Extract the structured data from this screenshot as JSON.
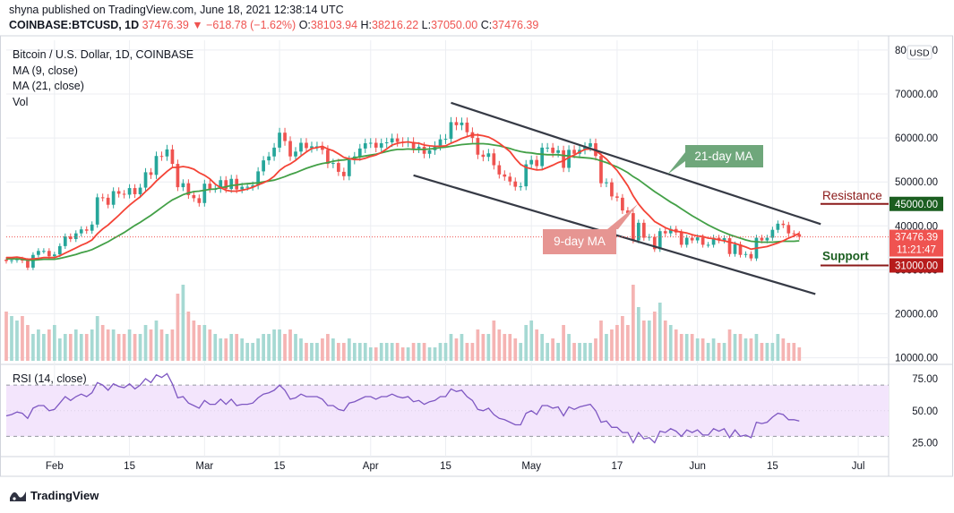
{
  "header": {
    "published": "shyna published on TradingView.com, June 18, 2021 12:38:14 UTC",
    "symbol": "COINBASE:BTCUSD, 1D",
    "last": "37476.39",
    "change": "−618.78 (−1.62%)",
    "o_label": "O:",
    "o": "38103.94",
    "h_label": "H:",
    "h": "38216.22",
    "l_label": "L:",
    "l": "37050.00",
    "c_label": "C:",
    "c": "37476.39"
  },
  "legend": {
    "title": "Bitcoin / U.S. Dollar, 1D, COINBASE",
    "ma9": "MA (9, close)",
    "ma21": "MA (21, close)",
    "vol": "Vol"
  },
  "footer": {
    "brand": "TradingView"
  },
  "colors": {
    "up": "#26a69a",
    "down": "#ef5350",
    "ma9": "#f44336",
    "ma21": "#43a047",
    "rsi": "#7e57c2",
    "rsi_band": "#f3e5fc",
    "grid": "#eceef2",
    "channel": "#363a45"
  },
  "chart_data": [
    {
      "type": "candlestick",
      "currency": "USD",
      "ylim": [
        10000,
        80000
      ],
      "y_ticks": [
        "10000.00",
        "20000.00",
        "30000.00",
        "40000.00",
        "50000.00",
        "60000.00",
        "70000.00",
        "80000.00"
      ],
      "x_labels": [
        "Feb",
        "15",
        "Mar",
        "15",
        "Apr",
        "15",
        "May",
        "17",
        "Jun",
        "15",
        "Jul"
      ],
      "x_label_dates": [
        "2021-02-01",
        "2021-02-15",
        "2021-03-01",
        "2021-03-15",
        "2021-04-01",
        "2021-04-15",
        "2021-05-01",
        "2021-05-17",
        "2021-06-01",
        "2021-06-15",
        "2021-07-01"
      ],
      "date_range": [
        "2021-01-23",
        "2021-06-18"
      ],
      "x_max": "2021-07-06",
      "close": [
        32000,
        32200,
        32400,
        32100,
        30500,
        33400,
        34300,
        34300,
        33100,
        33500,
        35400,
        37600,
        37000,
        38300,
        39200,
        38900,
        40300,
        46500,
        46400,
        44800,
        47900,
        47300,
        47100,
        48600,
        47200,
        48700,
        52200,
        51600,
        55900,
        55800,
        57400,
        54100,
        48800,
        49700,
        47000,
        46300,
        45200,
        49600,
        48400,
        48400,
        50400,
        48400,
        50700,
        48300,
        48900,
        48900,
        49200,
        52400,
        54900,
        55800,
        57800,
        61200,
        59300,
        55800,
        56900,
        58900,
        57700,
        58100,
        58100,
        57300,
        54100,
        54300,
        52300,
        51300,
        55000,
        55800,
        57600,
        58800,
        58900,
        57800,
        58800,
        59000,
        59900,
        59100,
        59000,
        59100,
        57600,
        58000,
        56400,
        57200,
        58200,
        59700,
        59800,
        63600,
        62900,
        63500,
        61300,
        60000,
        56200,
        55700,
        56500,
        53800,
        51700,
        51200,
        50100,
        48900,
        49000,
        54000,
        55000,
        53600,
        57800,
        57800,
        56600,
        57200,
        53200,
        57300,
        56400,
        57300,
        58000,
        58800,
        55900,
        49700,
        49900,
        46700,
        46400,
        43500,
        42900,
        36700,
        40700,
        37300,
        37500,
        34700,
        38800,
        38300,
        39300,
        38500,
        35700,
        37300,
        36700,
        37400,
        35700,
        35700,
        37300,
        36700,
        37200,
        33600,
        35800,
        33400,
        33600,
        32600,
        37300,
        36700,
        37300,
        39100,
        40500,
        40200,
        38300,
        38100,
        37500
      ],
      "ma9": [
        32800,
        32800,
        32900,
        32700,
        32400,
        32500,
        32600,
        32800,
        32800,
        32800,
        33200,
        33800,
        34400,
        35000,
        35600,
        36100,
        36800,
        38200,
        39300,
        40200,
        41300,
        42400,
        43600,
        44700,
        45700,
        46600,
        47800,
        48900,
        50200,
        51300,
        52400,
        53300,
        53300,
        53500,
        53300,
        52900,
        52100,
        51500,
        50700,
        49500,
        48700,
        48100,
        47900,
        47900,
        48100,
        48400,
        48800,
        49300,
        49800,
        50400,
        51300,
        52600,
        53500,
        54100,
        54900,
        55900,
        56800,
        57600,
        57800,
        58100,
        57500,
        57100,
        56400,
        55600,
        55300,
        55100,
        55100,
        55400,
        55800,
        56100,
        56700,
        57500,
        58400,
        58800,
        59000,
        59100,
        58900,
        58800,
        58400,
        58200,
        58100,
        58100,
        58200,
        58800,
        59300,
        59900,
        60300,
        60700,
        60700,
        60500,
        60200,
        59600,
        58800,
        57900,
        56900,
        55300,
        54000,
        53300,
        53000,
        52700,
        52800,
        53300,
        53800,
        54400,
        54800,
        55600,
        56100,
        56800,
        57400,
        57500,
        57100,
        56200,
        55200,
        53900,
        52600,
        50900,
        49100,
        46800,
        45000,
        43500,
        42300,
        41000,
        40300,
        39600,
        39100,
        38800,
        38600,
        38400,
        38000,
        37700,
        37600,
        37200,
        37100,
        36800,
        36600,
        36300,
        36000,
        35600,
        35200,
        34700,
        34900,
        35100,
        35300,
        35700,
        36100,
        36600,
        37200,
        37700,
        38300
      ],
      "ma21": [
        32500,
        32500,
        32500,
        32400,
        32200,
        32200,
        32300,
        32400,
        32400,
        32400,
        32600,
        32900,
        33200,
        33500,
        33900,
        34200,
        34600,
        35200,
        35800,
        36400,
        37100,
        37800,
        38500,
        39300,
        40100,
        40800,
        41600,
        42400,
        43300,
        44200,
        45100,
        45900,
        46500,
        47100,
        47500,
        47800,
        47900,
        48100,
        48300,
        48400,
        48700,
        48900,
        49200,
        49300,
        49500,
        49600,
        49700,
        49800,
        50000,
        50200,
        50400,
        50800,
        51200,
        51700,
        52100,
        52600,
        53100,
        53500,
        53900,
        54200,
        54400,
        54700,
        54900,
        55000,
        55200,
        55500,
        55700,
        55900,
        56100,
        56300,
        56600,
        56900,
        57200,
        57400,
        57400,
        57500,
        57400,
        57400,
        57400,
        57500,
        57600,
        57800,
        57900,
        58100,
        58300,
        58500,
        58600,
        58700,
        58700,
        58700,
        58600,
        58400,
        58200,
        57900,
        57600,
        57200,
        56900,
        56700,
        56600,
        56400,
        56300,
        56200,
        56200,
        56200,
        56000,
        55900,
        55700,
        55600,
        55500,
        55400,
        55200,
        54800,
        54400,
        53900,
        53400,
        52800,
        52100,
        51200,
        50500,
        49600,
        48700,
        47800,
        47000,
        46200,
        45400,
        44700,
        43900,
        43100,
        42300,
        41600,
        40900,
        40200,
        39600,
        39000,
        38500,
        38000,
        37600,
        37200,
        36800,
        36500,
        36400,
        36300,
        36300,
        36300,
        36400,
        36500,
        36500,
        36500,
        36600
      ],
      "volume": [
        0.55,
        0.5,
        0.45,
        0.5,
        0.4,
        0.3,
        0.35,
        0.3,
        0.35,
        0.4,
        0.25,
        0.3,
        0.3,
        0.35,
        0.3,
        0.3,
        0.35,
        0.5,
        0.4,
        0.35,
        0.35,
        0.3,
        0.3,
        0.35,
        0.3,
        0.3,
        0.4,
        0.35,
        0.45,
        0.35,
        0.3,
        0.35,
        0.75,
        0.85,
        0.55,
        0.45,
        0.4,
        0.4,
        0.35,
        0.3,
        0.25,
        0.25,
        0.3,
        0.3,
        0.25,
        0.2,
        0.2,
        0.25,
        0.3,
        0.3,
        0.35,
        0.35,
        0.3,
        0.35,
        0.3,
        0.25,
        0.2,
        0.2,
        0.2,
        0.25,
        0.3,
        0.25,
        0.2,
        0.2,
        0.25,
        0.2,
        0.2,
        0.2,
        0.15,
        0.15,
        0.2,
        0.2,
        0.2,
        0.2,
        0.15,
        0.15,
        0.2,
        0.2,
        0.2,
        0.15,
        0.15,
        0.2,
        0.2,
        0.3,
        0.25,
        0.3,
        0.2,
        0.2,
        0.35,
        0.3,
        0.3,
        0.45,
        0.35,
        0.3,
        0.3,
        0.25,
        0.2,
        0.4,
        0.45,
        0.35,
        0.3,
        0.2,
        0.25,
        0.2,
        0.4,
        0.3,
        0.2,
        0.2,
        0.2,
        0.2,
        0.25,
        0.45,
        0.3,
        0.35,
        0.4,
        0.5,
        0.4,
        0.85,
        0.6,
        0.45,
        0.45,
        0.55,
        0.65,
        0.45,
        0.4,
        0.35,
        0.3,
        0.3,
        0.3,
        0.25,
        0.25,
        0.2,
        0.25,
        0.2,
        0.2,
        0.35,
        0.3,
        0.3,
        0.25,
        0.25,
        0.3,
        0.2,
        0.2,
        0.2,
        0.3,
        0.25,
        0.2,
        0.2,
        0.15
      ],
      "current_price_tag": "37476.39",
      "countdown": "11:21:47",
      "levels": [
        {
          "name": "Resistance",
          "value": 45000,
          "label": "45000.00"
        },
        {
          "name": "Support",
          "value": 31000,
          "label": "31000.00"
        }
      ],
      "channel": {
        "upper": [
          [
            "2021-04-16",
            68000
          ],
          [
            "2021-06-24",
            40400
          ]
        ],
        "lower": [
          [
            "2021-04-09",
            51500
          ],
          [
            "2021-06-23",
            24500
          ]
        ]
      },
      "annotations": [
        {
          "text": "21-day MA",
          "color": "#6fa77b"
        },
        {
          "text": "9-day MA",
          "color": "#e69592"
        }
      ]
    },
    {
      "type": "line",
      "name": "RSI (14, close)",
      "ylim": [
        15,
        85
      ],
      "y_ticks": [
        "25.00",
        "50.00",
        "75.00"
      ],
      "band": [
        30,
        70
      ],
      "values": [
        46,
        47,
        49,
        48,
        44,
        52,
        54,
        54,
        50,
        51,
        56,
        61,
        58,
        61,
        63,
        61,
        64,
        72,
        70,
        66,
        71,
        69,
        68,
        71,
        67,
        70,
        75,
        72,
        78,
        76,
        79,
        71,
        60,
        61,
        56,
        54,
        52,
        58,
        55,
        55,
        59,
        55,
        59,
        54,
        55,
        55,
        56,
        60,
        63,
        64,
        66,
        70,
        66,
        59,
        60,
        63,
        61,
        61,
        61,
        59,
        54,
        54,
        51,
        50,
        56,
        57,
        59,
        61,
        61,
        59,
        61,
        61,
        63,
        61,
        60,
        61,
        57,
        58,
        55,
        57,
        58,
        61,
        61,
        67,
        65,
        66,
        61,
        58,
        51,
        50,
        52,
        47,
        44,
        43,
        41,
        39,
        39,
        48,
        50,
        47,
        54,
        54,
        52,
        53,
        46,
        53,
        51,
        53,
        54,
        55,
        50,
        41,
        42,
        37,
        37,
        33,
        33,
        25,
        33,
        28,
        29,
        25,
        34,
        33,
        36,
        34,
        30,
        35,
        33,
        35,
        31,
        31,
        36,
        34,
        36,
        29,
        35,
        30,
        31,
        29,
        41,
        40,
        41,
        45,
        48,
        47,
        43,
        43,
        42
      ]
    }
  ]
}
